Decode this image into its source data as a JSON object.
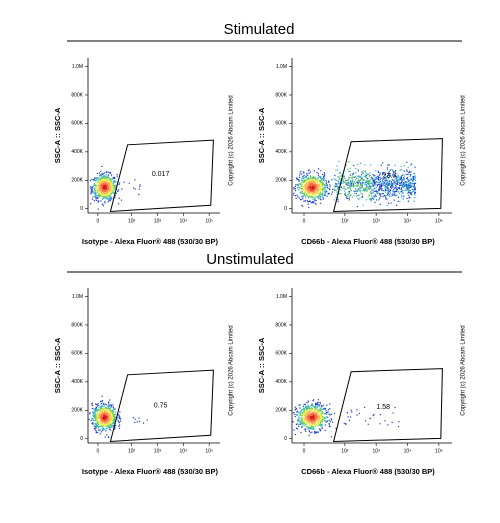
{
  "sections": [
    {
      "title": "Stimulated"
    },
    {
      "title": "Unstimulated"
    }
  ],
  "chart_data": [
    {
      "type": "scatter",
      "x_label": "Isotype - Alexa Fluor® 488 (530/30 BP)",
      "y_label": "SSC-A :: SSC-A",
      "copyright": "Copyright (c) 2026 Abcam Limited",
      "x_scale": "biex",
      "xlim": [
        -10,
        262144
      ],
      "ylim": [
        -30000,
        1060000
      ],
      "xticks": [
        0,
        {
          "value": 100,
          "label": "10²"
        },
        {
          "value": 1000,
          "label": "10³"
        },
        {
          "value": 10000,
          "label": "10⁴"
        },
        {
          "value": 100000,
          "label": "10⁵"
        }
      ],
      "yticks": [
        0,
        {
          "value": 200000,
          "label": "200K"
        },
        {
          "value": 400000,
          "label": "400K"
        },
        {
          "value": 600000,
          "label": "600K"
        },
        {
          "value": 800000,
          "label": "800K"
        },
        {
          "value": 1000000,
          "label": "1.0M"
        }
      ],
      "gate_value": 0.017
    },
    {
      "type": "scatter",
      "x_label": "CD66b - Alexa Fluor® 488 (530/30 BP)",
      "y_label": "SSC-A :: SSC-A",
      "copyright": "Copyright (c) 2026 Abcam Limited",
      "x_scale": "biex",
      "xlim": [
        -10,
        262144
      ],
      "ylim": [
        -30000,
        1060000
      ],
      "xticks": [
        0,
        {
          "value": 100,
          "label": "10²"
        },
        {
          "value": 1000,
          "label": "10³"
        },
        {
          "value": 10000,
          "label": "10⁴"
        },
        {
          "value": 100000,
          "label": "10⁵"
        }
      ],
      "yticks": [
        0,
        {
          "value": 200000,
          "label": "200K"
        },
        {
          "value": 400000,
          "label": "400K"
        },
        {
          "value": 600000,
          "label": "600K"
        },
        {
          "value": 800000,
          "label": "800K"
        },
        {
          "value": 1000000,
          "label": "1.0M"
        }
      ],
      "gate_value": 23.3
    },
    {
      "type": "scatter",
      "x_label": "Isotype - Alexa Fluor® 488 (530/30 BP)",
      "y_label": "SSC-A :: SSC-A",
      "copyright": "Copyright (c) 2026 Abcam Limited",
      "x_scale": "biex",
      "xlim": [
        -10,
        262144
      ],
      "ylim": [
        -30000,
        1060000
      ],
      "xticks": [
        0,
        {
          "value": 100,
          "label": "10²"
        },
        {
          "value": 1000,
          "label": "10³"
        },
        {
          "value": 10000,
          "label": "10⁴"
        },
        {
          "value": 100000,
          "label": "10⁵"
        }
      ],
      "yticks": [
        0,
        {
          "value": 200000,
          "label": "200K"
        },
        {
          "value": 400000,
          "label": "400K"
        },
        {
          "value": 600000,
          "label": "600K"
        },
        {
          "value": 800000,
          "label": "800K"
        },
        {
          "value": 1000000,
          "label": "1.0M"
        }
      ],
      "gate_value": 0.75
    },
    {
      "type": "scatter",
      "x_label": "CD66b - Alexa Fluor® 488 (530/30 BP)",
      "y_label": "SSC-A :: SSC-A",
      "copyright": "Copyright (c) 2026 Abcam Limited",
      "x_scale": "biex",
      "xlim": [
        -10,
        262144
      ],
      "ylim": [
        -30000,
        1060000
      ],
      "xticks": [
        0,
        {
          "value": 100,
          "label": "10²"
        },
        {
          "value": 1000,
          "label": "10³"
        },
        {
          "value": 10000,
          "label": "10⁴"
        },
        {
          "value": 100000,
          "label": "10⁵"
        }
      ],
      "yticks": [
        0,
        {
          "value": 200000,
          "label": "200K"
        },
        {
          "value": 400000,
          "label": "400K"
        },
        {
          "value": 600000,
          "label": "600K"
        },
        {
          "value": 800000,
          "label": "800K"
        },
        {
          "value": 1000000,
          "label": "1.0M"
        }
      ],
      "gate_value": 1.58
    }
  ]
}
